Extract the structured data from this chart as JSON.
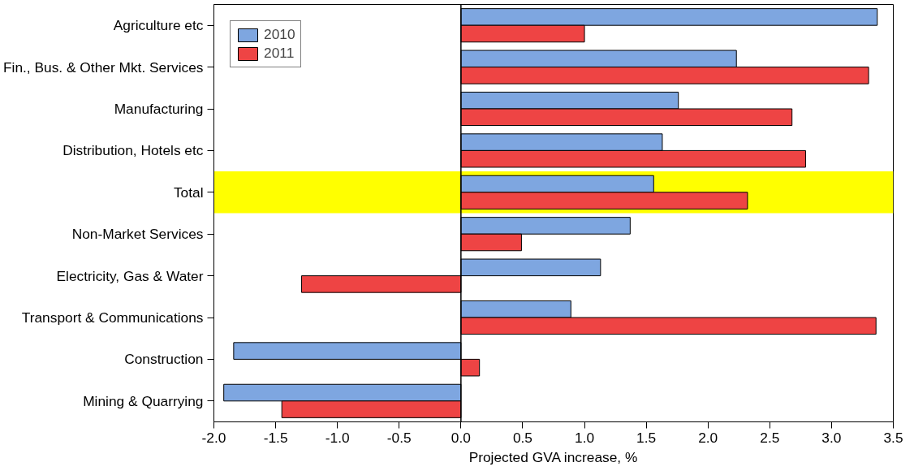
{
  "chart_data": {
    "type": "bar",
    "orientation": "horizontal",
    "xlabel": "Projected GVA increase, %",
    "categories": [
      "Agriculture etc",
      "Fin., Bus. & Other Mkt. Services",
      "Manufacturing",
      "Distribution, Hotels etc",
      "Total",
      "Non-Market Services",
      "Electricity, Gas & Water",
      "Transport & Communications",
      "Construction",
      "Mining & Quarrying"
    ],
    "series": [
      {
        "name": "2010",
        "color": "#7ea6e0",
        "values": [
          3.37,
          2.23,
          1.76,
          1.63,
          1.56,
          1.37,
          1.13,
          0.89,
          -1.84,
          -1.92
        ]
      },
      {
        "name": "2011",
        "color": "#ee4444",
        "values": [
          1.0,
          3.3,
          2.68,
          2.79,
          2.32,
          0.49,
          -1.29,
          3.36,
          0.15,
          -1.45
        ]
      }
    ],
    "xlim": [
      -2.0,
      3.5
    ],
    "xticks": [
      {
        "value": -2,
        "label": "-2.0"
      },
      {
        "value": -1.5,
        "label": "-1.5"
      },
      {
        "value": -1,
        "label": "-1.0"
      },
      {
        "value": -0.5,
        "label": "-0.5"
      },
      {
        "value": 0,
        "label": "0.0"
      },
      {
        "value": 0.5,
        "label": "0.5"
      },
      {
        "value": 1,
        "label": "1.0"
      },
      {
        "value": 1.5,
        "label": "1.5"
      },
      {
        "value": 2,
        "label": "2.0"
      },
      {
        "value": 2.5,
        "label": "2.5"
      },
      {
        "value": 3,
        "label": "3.0"
      },
      {
        "value": 3.5,
        "label": "3.5"
      }
    ],
    "bands": [
      {
        "axis": "y",
        "from": "Total",
        "to": "Total",
        "color": "#ffff00"
      }
    ],
    "ref_lines": [
      {
        "axis": "x",
        "value": 0,
        "color": "#000000"
      }
    ],
    "grid": false,
    "legend": "top left"
  }
}
